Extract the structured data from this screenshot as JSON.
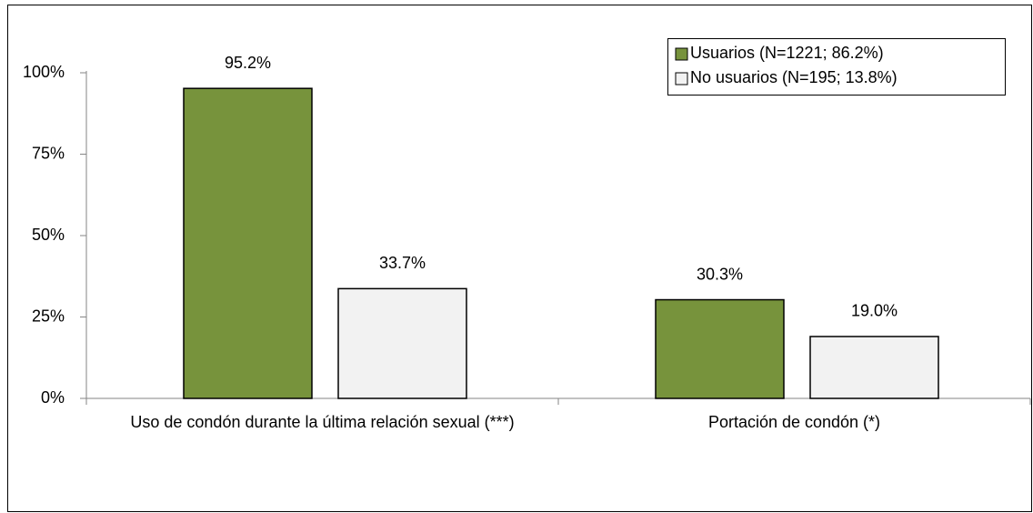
{
  "chart_data": {
    "type": "bar",
    "categories": [
      "Uso de condón durante la última relación sexual (***)",
      "Portación de condón (*)"
    ],
    "series": [
      {
        "name": "Usuarios (N=1221; 86.2%)",
        "color": "#77933c",
        "values": [
          95.2,
          30.3
        ],
        "value_labels": [
          "95.2%",
          "30.3%"
        ]
      },
      {
        "name": "No usuarios (N=195; 13.8%)",
        "color": "#f2f2f2",
        "values": [
          33.7,
          19.0
        ],
        "value_labels": [
          "33.7%",
          "19.0%"
        ]
      }
    ],
    "ylim": [
      0,
      100
    ],
    "yticks": [
      {
        "value": 0,
        "label": "0%"
      },
      {
        "value": 25,
        "label": "25%"
      },
      {
        "value": 50,
        "label": "50%"
      },
      {
        "value": 75,
        "label": "75%"
      },
      {
        "value": 100,
        "label": "100%"
      }
    ],
    "legend": "top-right"
  }
}
